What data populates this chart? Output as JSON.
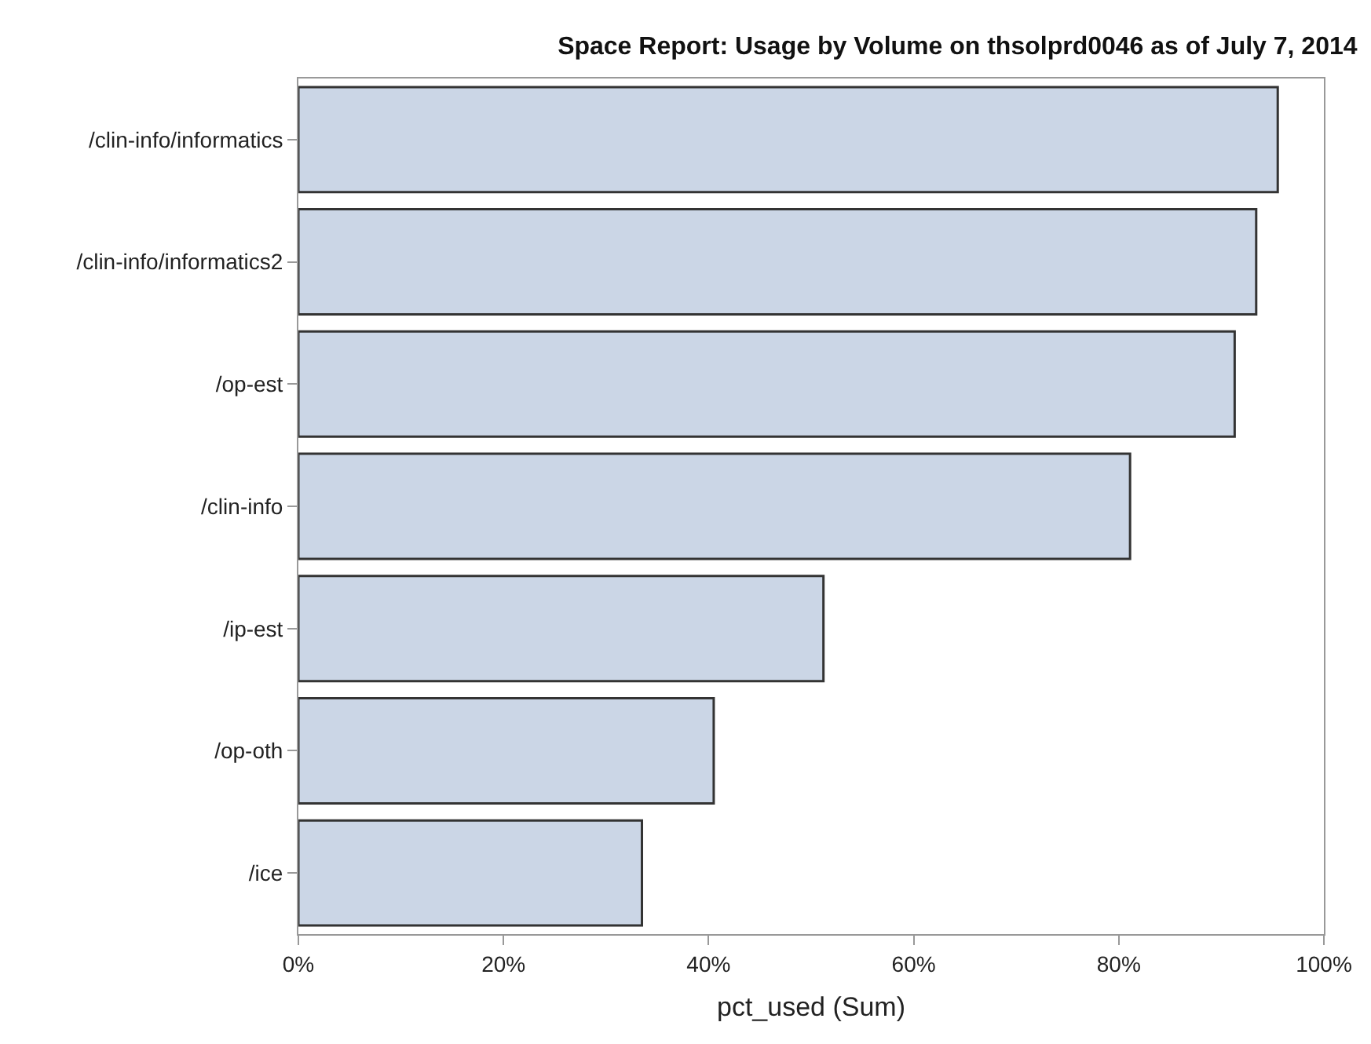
{
  "chart_data": {
    "type": "bar",
    "orientation": "horizontal",
    "title": "Space Report: Usage by Volume on thsolprd0046 as of July 7, 2014",
    "xlabel": "pct_used (Sum)",
    "categories": [
      "/clin-info/informatics",
      "/clin-info/informatics2",
      "/op-est",
      "/clin-info",
      "/ip-est",
      "/op-oth",
      "/ice"
    ],
    "values": [
      95.5,
      93.4,
      91.3,
      81.1,
      51.2,
      40.5,
      33.5
    ],
    "color": "#cbd6e6",
    "xlim": [
      0,
      100
    ],
    "xticks": [
      {
        "value": 0,
        "label": "0%"
      },
      {
        "value": 20,
        "label": "20%"
      },
      {
        "value": 40,
        "label": "40%"
      },
      {
        "value": 60,
        "label": "60%"
      },
      {
        "value": 80,
        "label": "80%"
      },
      {
        "value": 100,
        "label": "100%"
      }
    ]
  }
}
